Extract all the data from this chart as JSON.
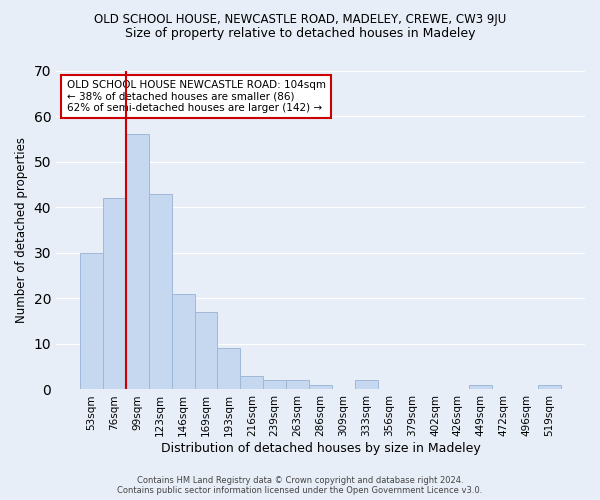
{
  "title": "OLD SCHOOL HOUSE, NEWCASTLE ROAD, MADELEY, CREWE, CW3 9JU",
  "subtitle": "Size of property relative to detached houses in Madeley",
  "xlabel": "Distribution of detached houses by size in Madeley",
  "ylabel": "Number of detached properties",
  "bar_values": [
    30,
    42,
    56,
    43,
    21,
    17,
    9,
    3,
    2,
    2,
    1,
    0,
    2,
    0,
    0,
    0,
    0,
    1,
    0,
    0,
    1
  ],
  "bar_labels": [
    "53sqm",
    "76sqm",
    "99sqm",
    "123sqm",
    "146sqm",
    "169sqm",
    "193sqm",
    "216sqm",
    "239sqm",
    "263sqm",
    "286sqm",
    "309sqm",
    "333sqm",
    "356sqm",
    "379sqm",
    "402sqm",
    "426sqm",
    "449sqm",
    "472sqm",
    "496sqm",
    "519sqm"
  ],
  "bar_color": "#c5d8f0",
  "bar_edge_color": "#a0b8d8",
  "vline_x": 1.5,
  "vline_color": "#cc0000",
  "ylim": [
    0,
    70
  ],
  "yticks": [
    0,
    10,
    20,
    30,
    40,
    50,
    60,
    70
  ],
  "annotation_title": "OLD SCHOOL HOUSE NEWCASTLE ROAD: 104sqm",
  "annotation_line1": "← 38% of detached houses are smaller (86)",
  "annotation_line2": "62% of semi-detached houses are larger (142) →",
  "annotation_box_color": "#ffffff",
  "annotation_box_edge": "#cc0000",
  "footer1": "Contains HM Land Registry data © Crown copyright and database right 2024.",
  "footer2": "Contains public sector information licensed under the Open Government Licence v3.0.",
  "bg_color": "#e8eef8",
  "plot_bg_color": "#e8eef8"
}
